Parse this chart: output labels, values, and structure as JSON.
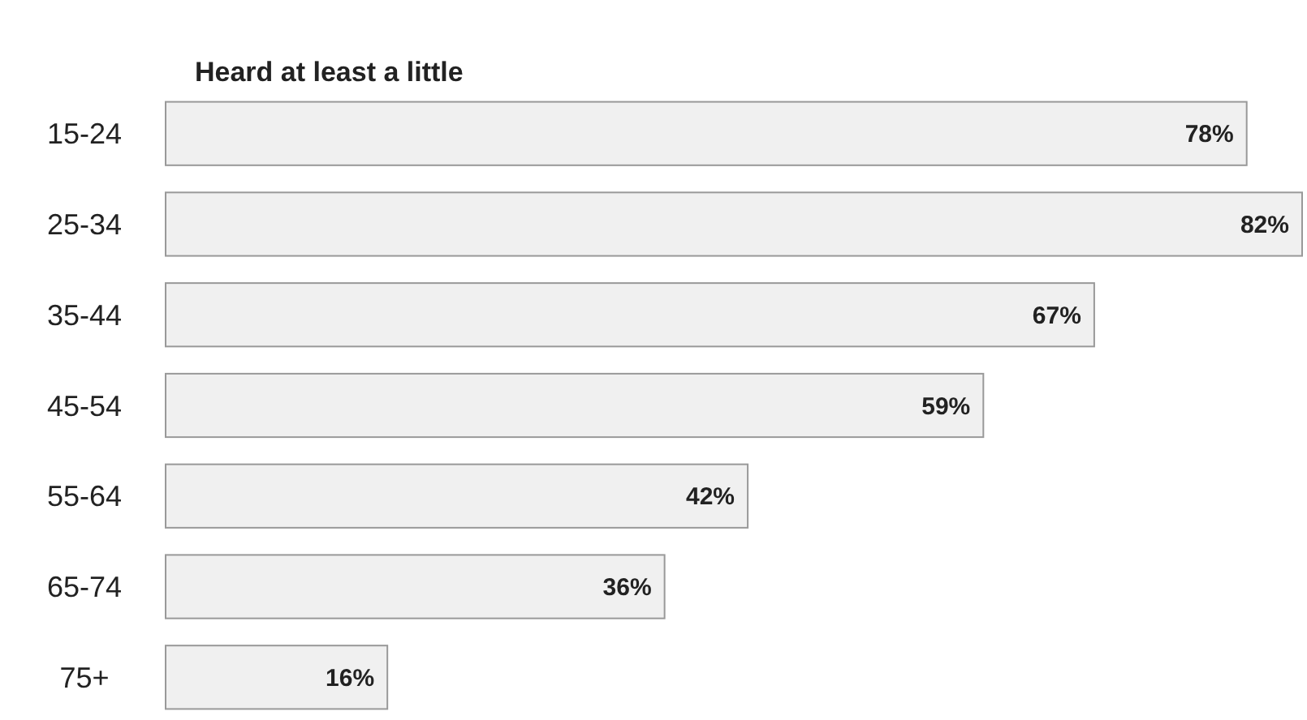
{
  "chart_data": {
    "type": "bar",
    "orientation": "horizontal",
    "title": "Heard at least a little",
    "categories": [
      "15-24",
      "25-34",
      "35-44",
      "45-54",
      "55-64",
      "65-74",
      "75+"
    ],
    "values": [
      78,
      82,
      67,
      59,
      42,
      36,
      16
    ],
    "value_labels": [
      "78%",
      "82%",
      "67%",
      "59%",
      "42%",
      "36%",
      "16%"
    ],
    "color": "#f0f0f0"
  }
}
